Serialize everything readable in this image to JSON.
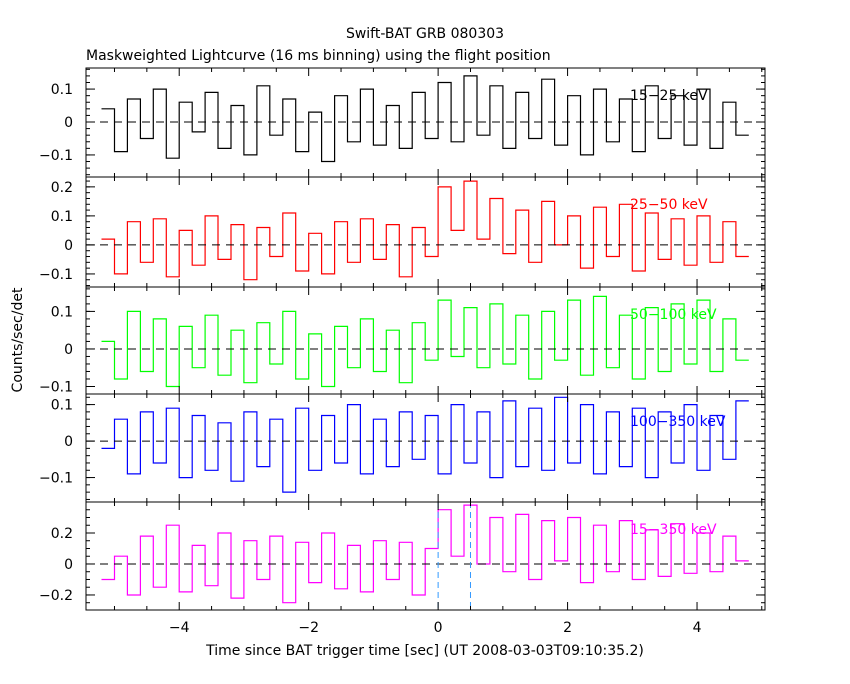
{
  "chart_data": {
    "type": "line",
    "title": "Swift-BAT GRB 080303",
    "subtitle": "Maskweighted Lightcurve (16 ms binning) using the flight position",
    "xlabel": "Time since BAT trigger time [sec] (UT 2008-03-03T09:10:35.2)",
    "ylabel": "Counts/sec/det",
    "xlim": [
      -5.44,
      5.05
    ],
    "x_ticks": [
      -4,
      -2,
      0,
      2,
      4
    ],
    "x_tick_labels": [
      "−4",
      "−2",
      "0",
      "2",
      "4"
    ],
    "x_start": -5.2,
    "x_step": 0.2,
    "grid": false,
    "reference_lines": {
      "y_zero_dashed": true,
      "vertical_lines_x": [
        0,
        0.5
      ],
      "vertical_line_color": "#3399ff"
    },
    "panels": [
      {
        "name": "15−25 keV",
        "color": "#000000",
        "ylim": [
          -0.167,
          0.164
        ],
        "y_ticks": [
          -0.1,
          0,
          0.1
        ],
        "y_tick_labels": [
          "−0.1",
          "0",
          "0.1"
        ],
        "values": [
          0.04,
          -0.09,
          0.07,
          -0.05,
          0.1,
          -0.11,
          0.06,
          -0.03,
          0.09,
          -0.08,
          0.05,
          -0.1,
          0.11,
          -0.04,
          0.07,
          -0.09,
          0.03,
          -0.12,
          0.08,
          -0.06,
          0.1,
          -0.07,
          0.05,
          -0.08,
          0.09,
          -0.05,
          0.12,
          -0.06,
          0.14,
          -0.04,
          0.11,
          -0.08,
          0.09,
          -0.05,
          0.13,
          -0.07,
          0.08,
          -0.1,
          0.1,
          -0.06,
          0.07,
          -0.09,
          0.11,
          -0.05,
          0.08,
          -0.07,
          0.1,
          -0.08,
          0.06,
          -0.04
        ]
      },
      {
        "name": "25−50 keV",
        "color": "#ff0000",
        "ylim": [
          -0.145,
          0.234
        ],
        "y_ticks": [
          -0.1,
          0,
          0.1,
          0.2
        ],
        "y_tick_labels": [
          "−0.1",
          "0",
          "0.1",
          "0.2"
        ],
        "values": [
          0.02,
          -0.1,
          0.08,
          -0.06,
          0.09,
          -0.11,
          0.05,
          -0.07,
          0.1,
          -0.05,
          0.07,
          -0.12,
          0.06,
          -0.04,
          0.11,
          -0.09,
          0.04,
          -0.1,
          0.08,
          -0.06,
          0.09,
          -0.05,
          0.07,
          -0.11,
          0.06,
          -0.04,
          0.2,
          0.05,
          0.22,
          0.02,
          0.16,
          -0.03,
          0.12,
          -0.06,
          0.15,
          0.0,
          0.1,
          -0.08,
          0.13,
          -0.04,
          0.14,
          -0.09,
          0.11,
          -0.05,
          0.09,
          -0.07,
          0.1,
          -0.06,
          0.08,
          -0.04
        ]
      },
      {
        "name": "50−100 keV",
        "color": "#00ff00",
        "ylim": [
          -0.12,
          0.165
        ],
        "y_ticks": [
          -0.1,
          0,
          0.1
        ],
        "y_tick_labels": [
          "−0.1",
          "0",
          "0.1"
        ],
        "values": [
          0.02,
          -0.08,
          0.1,
          -0.06,
          0.08,
          -0.1,
          0.06,
          -0.05,
          0.09,
          -0.07,
          0.05,
          -0.09,
          0.07,
          -0.04,
          0.1,
          -0.08,
          0.04,
          -0.1,
          0.06,
          -0.05,
          0.08,
          -0.06,
          0.05,
          -0.09,
          0.07,
          -0.03,
          0.13,
          -0.02,
          0.11,
          -0.05,
          0.12,
          -0.04,
          0.09,
          -0.08,
          0.1,
          -0.03,
          0.13,
          -0.07,
          0.14,
          -0.05,
          0.09,
          -0.08,
          0.11,
          -0.06,
          0.12,
          -0.04,
          0.13,
          -0.06,
          0.08,
          -0.03
        ]
      },
      {
        "name": "100−350 keV",
        "color": "#0000ff",
        "ylim": [
          -0.167,
          0.129
        ],
        "y_ticks": [
          -0.1,
          0,
          0.1
        ],
        "y_tick_labels": [
          "−0.1",
          "0",
          "0.1"
        ],
        "values": [
          -0.02,
          0.06,
          -0.09,
          0.08,
          -0.06,
          0.09,
          -0.1,
          0.07,
          -0.08,
          0.05,
          -0.11,
          0.08,
          -0.07,
          0.06,
          -0.14,
          0.09,
          -0.08,
          0.07,
          -0.06,
          0.1,
          -0.09,
          0.06,
          -0.07,
          0.08,
          -0.05,
          0.07,
          -0.09,
          0.1,
          -0.06,
          0.08,
          -0.1,
          0.11,
          -0.07,
          0.09,
          -0.08,
          0.12,
          -0.06,
          0.1,
          -0.09,
          0.08,
          -0.07,
          0.09,
          -0.1,
          0.08,
          -0.06,
          0.1,
          -0.08,
          0.07,
          -0.05,
          0.11
        ]
      },
      {
        "name": "15−350 keV",
        "color": "#ff00ff",
        "ylim": [
          -0.297,
          0.4
        ],
        "y_ticks": [
          -0.2,
          0,
          0.2
        ],
        "y_tick_labels": [
          "−0.2",
          "0",
          "0.2"
        ],
        "values": [
          -0.1,
          0.05,
          -0.2,
          0.18,
          -0.15,
          0.25,
          -0.18,
          0.12,
          -0.14,
          0.2,
          -0.22,
          0.15,
          -0.1,
          0.18,
          -0.25,
          0.14,
          -0.12,
          0.2,
          -0.16,
          0.12,
          -0.18,
          0.15,
          -0.1,
          0.14,
          -0.2,
          0.1,
          0.35,
          0.05,
          0.38,
          0.0,
          0.3,
          -0.05,
          0.32,
          -0.1,
          0.28,
          0.02,
          0.3,
          -0.12,
          0.25,
          -0.05,
          0.28,
          -0.1,
          0.22,
          -0.08,
          0.26,
          -0.06,
          0.2,
          -0.05,
          0.18,
          0.02
        ]
      }
    ]
  }
}
